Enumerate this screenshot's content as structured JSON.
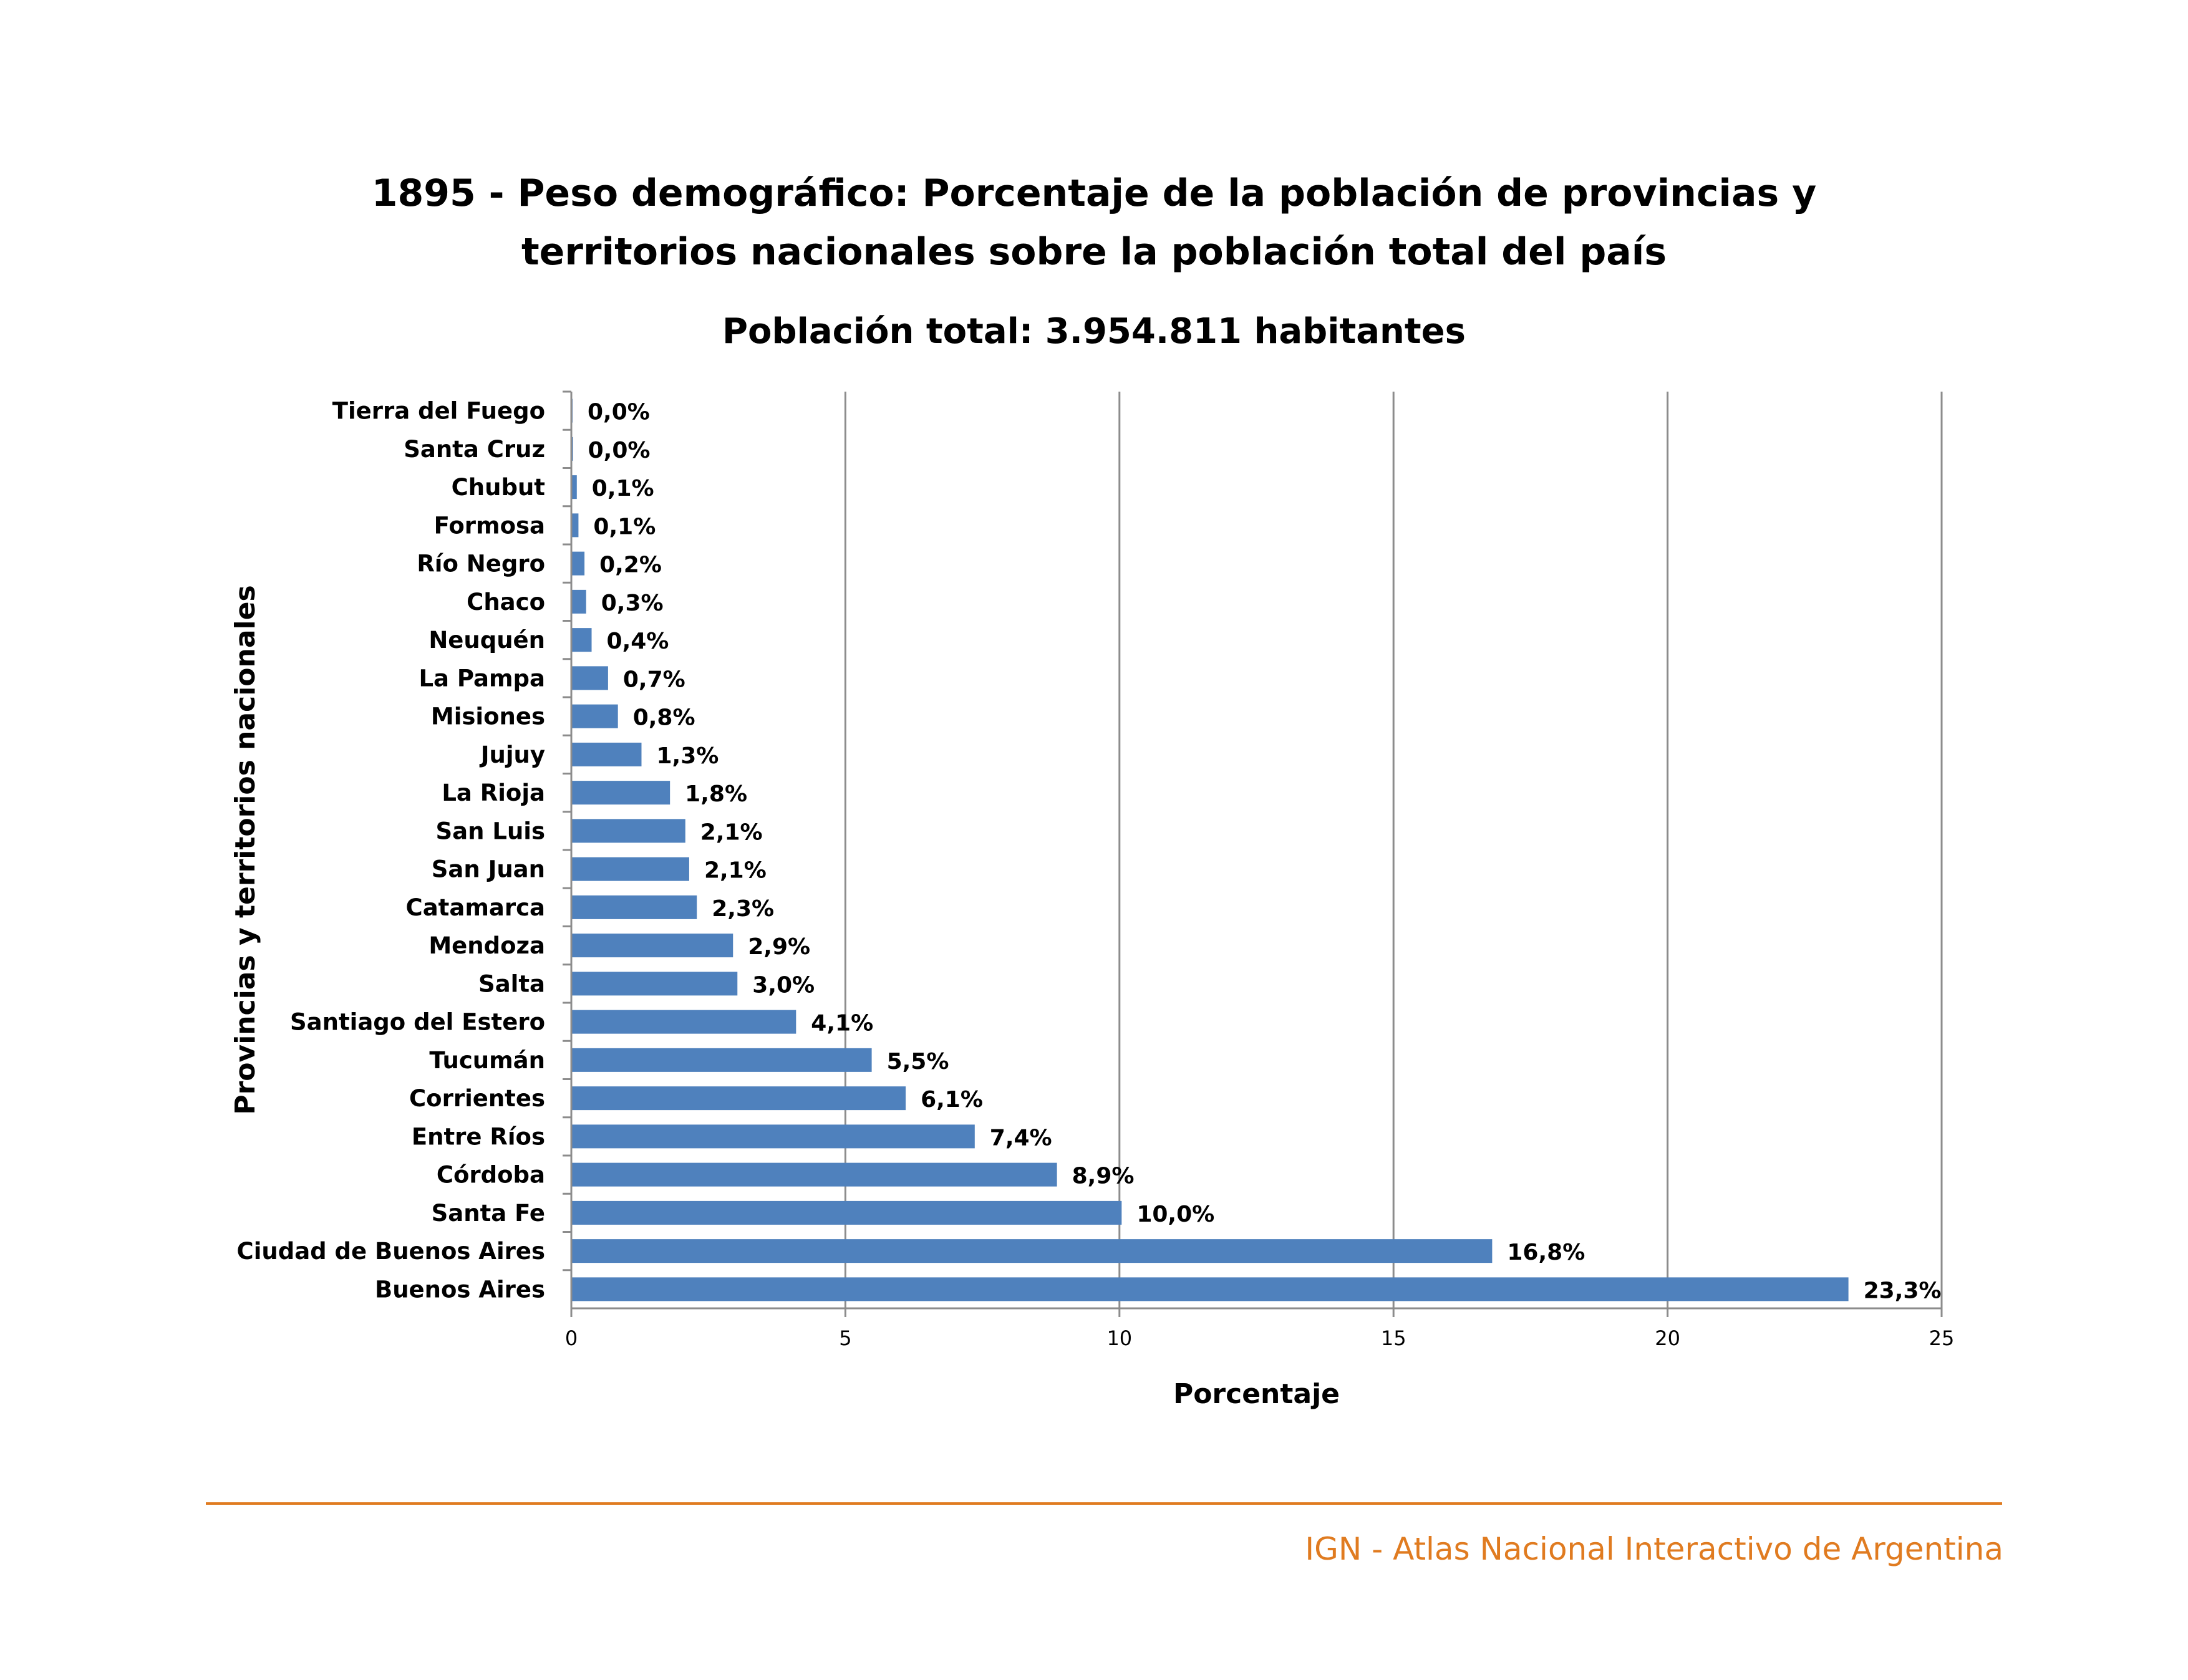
{
  "title_line1": "1895 - Peso demográfico: Porcentaje de la población de provincias y",
  "title_line2": "territorios nacionales sobre la población total del país",
  "subtitle": "Población total: 3.954.811 habitantes",
  "footer": "IGN - Atlas Nacional Interactivo de Argentina",
  "colors": {
    "bar": "#4f81bd",
    "grid": "#8c8c8c",
    "footer": "#e07b20"
  },
  "chart_data": {
    "type": "bar",
    "orientation": "horizontal",
    "xlabel": "Porcentaje",
    "ylabel": "Provincias y territorios nacionales",
    "xlim": [
      0,
      25
    ],
    "xticks": [
      0,
      5,
      10,
      15,
      20,
      25
    ],
    "grid": "vertical",
    "categories": [
      "Tierra del Fuego",
      "Santa Cruz",
      "Chubut",
      "Formosa",
      "Río Negro",
      "Chaco",
      "Neuquén",
      "La Pampa",
      "Misiones",
      "Jujuy",
      "La Rioja",
      "San Luis",
      "San Juan",
      "Catamarca",
      "Mendoza",
      "Salta",
      "Santiago del Estero",
      "Tucumán",
      "Corrientes",
      "Entre Ríos",
      "Córdoba",
      "Santa Fe",
      "Ciudad de Buenos Aires",
      "Buenos Aires"
    ],
    "values": [
      0.02,
      0.03,
      0.1,
      0.13,
      0.24,
      0.27,
      0.37,
      0.67,
      0.85,
      1.28,
      1.8,
      2.08,
      2.15,
      2.29,
      2.95,
      3.03,
      4.1,
      5.48,
      6.1,
      7.36,
      8.86,
      10.04,
      16.8,
      23.3
    ],
    "data_labels": [
      "0,0%",
      "0,0%",
      "0,1%",
      "0,1%",
      "0,2%",
      "0,3%",
      "0,4%",
      "0,7%",
      "0,8%",
      "1,3%",
      "1,8%",
      "2,1%",
      "2,1%",
      "2,3%",
      "2,9%",
      "3,0%",
      "4,1%",
      "5,5%",
      "6,1%",
      "7,4%",
      "8,9%",
      "10,0%",
      "16,8%",
      "23,3%"
    ]
  }
}
